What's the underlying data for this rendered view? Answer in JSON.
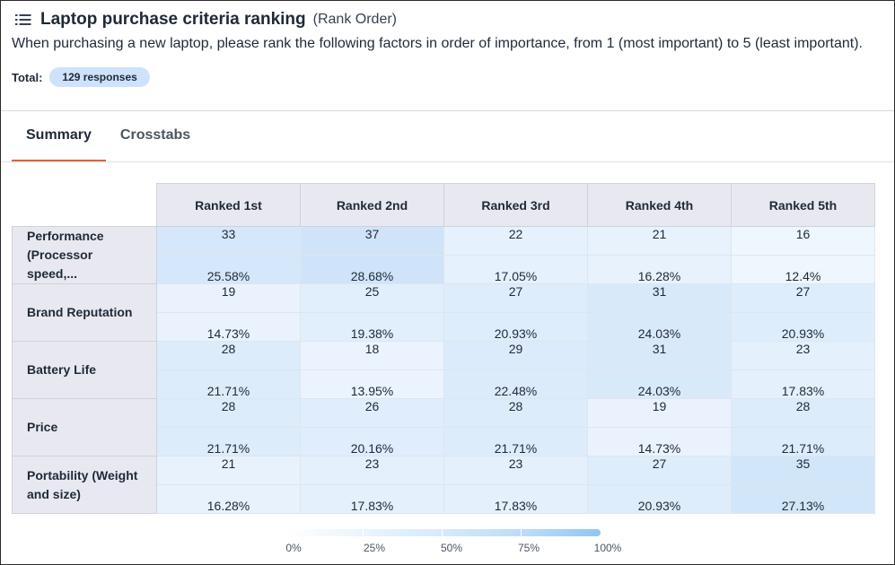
{
  "question": {
    "title": "Laptop purchase criteria ranking",
    "type": "(Rank Order)",
    "description": "When purchasing a new laptop, please rank the following factors in order of importance, from 1 (most important) to 5 (least important).",
    "total_label": "Total:",
    "total_badge": "129 responses"
  },
  "tabs": [
    {
      "label": "Summary",
      "active": true
    },
    {
      "label": "Crosstabs",
      "active": false
    }
  ],
  "table": {
    "columns": [
      "Ranked 1st",
      "Ranked 2nd",
      "Ranked 3rd",
      "Ranked 4th",
      "Ranked 5th"
    ],
    "rows": [
      {
        "label": "Performance (Processor speed,...",
        "counts": [
          "33",
          "37",
          "22",
          "21",
          "16"
        ],
        "percents": [
          "25.58%",
          "28.68%",
          "17.05%",
          "16.28%",
          "12.4%"
        ]
      },
      {
        "label": "Brand Reputation",
        "counts": [
          "19",
          "25",
          "27",
          "31",
          "27"
        ],
        "percents": [
          "14.73%",
          "19.38%",
          "20.93%",
          "24.03%",
          "20.93%"
        ]
      },
      {
        "label": "Battery Life",
        "counts": [
          "28",
          "18",
          "29",
          "31",
          "23"
        ],
        "percents": [
          "21.71%",
          "13.95%",
          "22.48%",
          "24.03%",
          "17.83%"
        ]
      },
      {
        "label": "Price",
        "counts": [
          "28",
          "26",
          "28",
          "19",
          "28"
        ],
        "percents": [
          "21.71%",
          "20.16%",
          "21.71%",
          "14.73%",
          "21.71%"
        ]
      },
      {
        "label": "Portability (Weight and size)",
        "counts": [
          "21",
          "23",
          "23",
          "27",
          "35"
        ],
        "percents": [
          "16.28%",
          "17.83%",
          "17.83%",
          "20.93%",
          "27.13%"
        ]
      }
    ]
  },
  "legend": {
    "labels": [
      "0%",
      "25%",
      "50%",
      "75%",
      "100%"
    ]
  },
  "colors": {
    "accent_tab": "#e0623a",
    "badge_bg": "#cfe2fb",
    "header_bg": "#e8e9f0",
    "heat_low": "#eef6fe",
    "heat_high": "#cfe4f9"
  }
}
